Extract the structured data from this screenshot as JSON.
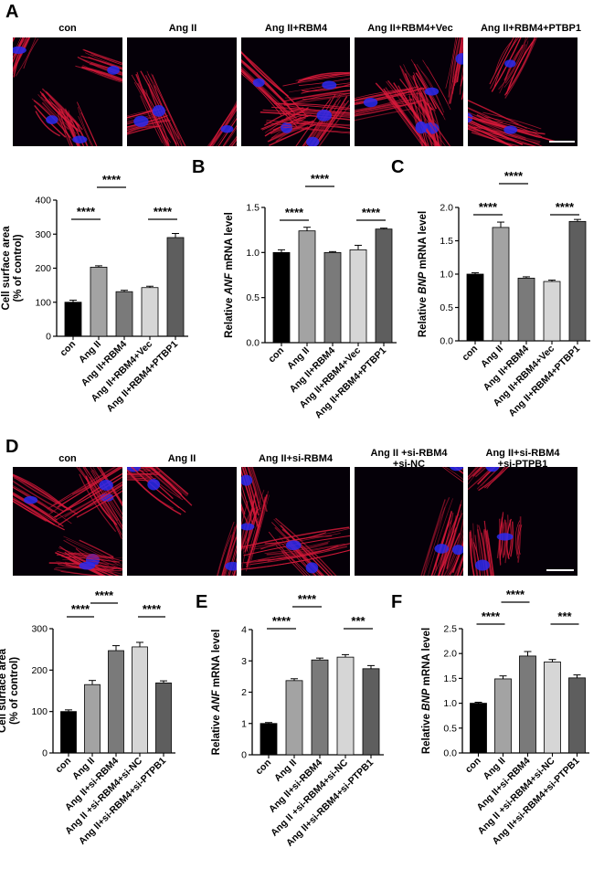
{
  "panels": {
    "A": "A",
    "B": "B",
    "C": "C",
    "D": "D",
    "E": "E",
    "F": "F"
  },
  "micrographs_top": {
    "titles": [
      "con",
      "Ang II",
      "Ang II+RBM4",
      "Ang II+RBM4+Vec",
      "Ang II+RBM4+PTBP1"
    ]
  },
  "micrographs_bottom": {
    "titles": [
      [
        "con"
      ],
      [
        "Ang II"
      ],
      [
        "Ang II+si-RBM4"
      ],
      [
        "Ang II +si-RBM4",
        "+si-NC"
      ],
      [
        "Ang II+si-RBM4",
        "+si-PTPB1"
      ]
    ]
  },
  "colors": {
    "bars": [
      "#000000",
      "#a3a3a3",
      "#7a7a7a",
      "#d6d6d6",
      "#5e5e5e"
    ],
    "stain_red": "#d7193a",
    "nuclei_blue": "#2a2af0"
  },
  "chart_data": [
    {
      "id": "chart-a",
      "type": "bar",
      "ylabel_lines": [
        "Cell surface area",
        "(% of control)"
      ],
      "ylim": [
        0,
        400
      ],
      "yticks": [
        "0",
        "100",
        "200",
        "300",
        "400"
      ],
      "categories": [
        "con",
        "Ang II",
        "Ang II+RBM4",
        "Ang II+RBM4+Vec",
        "Ang II+RBM4+PTBP1"
      ],
      "values": [
        100,
        203,
        131,
        143,
        290
      ],
      "errors": [
        6,
        4,
        4,
        4,
        12
      ],
      "significance": [
        {
          "from": 0,
          "to": 1,
          "label": "****"
        },
        {
          "from": 1,
          "to": 2,
          "label": "****"
        },
        {
          "from": 3,
          "to": 4,
          "label": "****"
        }
      ]
    },
    {
      "id": "chart-b",
      "type": "bar",
      "ylabel_parts": [
        "Relative ",
        "ANF",
        " mRNA level"
      ],
      "ylim": [
        0,
        1.5
      ],
      "yticks": [
        "0.0",
        "0.5",
        "1.0",
        "1.5"
      ],
      "categories": [
        "con",
        "Ang II",
        "Ang II+RBM4",
        "Ang II+RBM4+Vec",
        "Ang II+RBM4+PTBP1"
      ],
      "values": [
        1.0,
        1.24,
        1.0,
        1.03,
        1.26
      ],
      "errors": [
        0.03,
        0.04,
        0.01,
        0.05,
        0.01
      ],
      "significance": [
        {
          "from": 0,
          "to": 1,
          "label": "****"
        },
        {
          "from": 1,
          "to": 2,
          "label": "****"
        },
        {
          "from": 3,
          "to": 4,
          "label": "****"
        }
      ]
    },
    {
      "id": "chart-c",
      "type": "bar",
      "ylabel_parts": [
        "Relative ",
        "BNP",
        " mRNA level"
      ],
      "ylim": [
        0,
        2.0
      ],
      "yticks": [
        "0.0",
        "0.5",
        "1.0",
        "1.5",
        "2.0"
      ],
      "categories": [
        "con",
        "Ang II",
        "Ang II+RBM4",
        "Ang II+RBM4+Vec",
        "Ang II+RBM4+PTBP1"
      ],
      "values": [
        1.0,
        1.7,
        0.94,
        0.89,
        1.79
      ],
      "errors": [
        0.02,
        0.08,
        0.02,
        0.02,
        0.03
      ],
      "significance": [
        {
          "from": 0,
          "to": 1,
          "label": "****"
        },
        {
          "from": 1,
          "to": 2,
          "label": "****"
        },
        {
          "from": 3,
          "to": 4,
          "label": "****"
        }
      ]
    },
    {
      "id": "chart-d",
      "type": "bar",
      "ylabel_lines": [
        "Cell surface area",
        "(% of control)"
      ],
      "ylim": [
        0,
        300
      ],
      "yticks": [
        "0",
        "100",
        "200",
        "300"
      ],
      "categories": [
        "con",
        "Ang II",
        "Ang II+si-RBM4",
        "Ang II +si-RBM4+si-NC",
        "Ang II+si-RBM4+si-PTPB1"
      ],
      "values": [
        100,
        165,
        247,
        256,
        169
      ],
      "errors": [
        4,
        10,
        12,
        11,
        5
      ],
      "significance": [
        {
          "from": 0,
          "to": 1,
          "label": "****"
        },
        {
          "from": 1,
          "to": 2,
          "label": "****"
        },
        {
          "from": 3,
          "to": 4,
          "label": "****"
        }
      ]
    },
    {
      "id": "chart-e",
      "type": "bar",
      "ylabel_parts": [
        "Relative ",
        "ANF",
        " mRNA level"
      ],
      "ylim": [
        0,
        4
      ],
      "yticks": [
        "0",
        "1",
        "2",
        "3",
        "4"
      ],
      "categories": [
        "con",
        "Ang II",
        "Ang II+si-RBM4",
        "Ang II +si-RBM4+si-NC",
        "Ang II+si-RBM4+si-PTPB1"
      ],
      "values": [
        1.0,
        2.37,
        3.03,
        3.12,
        2.75
      ],
      "errors": [
        0.03,
        0.06,
        0.06,
        0.08,
        0.1
      ],
      "significance": [
        {
          "from": 0,
          "to": 1,
          "label": "****"
        },
        {
          "from": 1,
          "to": 2,
          "label": "****"
        },
        {
          "from": 3,
          "to": 4,
          "label": "***"
        }
      ]
    },
    {
      "id": "chart-f",
      "type": "bar",
      "ylabel_parts": [
        "Relative ",
        "BNP",
        " mRNA level"
      ],
      "ylim": [
        0,
        2.5
      ],
      "yticks": [
        "0.0",
        "0.5",
        "1.0",
        "1.5",
        "2.0",
        "2.5"
      ],
      "categories": [
        "con",
        "Ang II",
        "Ang II+si-RBM4",
        "Ang II +si-RBM4+si-NC",
        "Ang II+si-RBM4+si-PTPB1"
      ],
      "values": [
        1.0,
        1.49,
        1.95,
        1.83,
        1.51
      ],
      "errors": [
        0.02,
        0.06,
        0.09,
        0.05,
        0.06
      ],
      "significance": [
        {
          "from": 0,
          "to": 1,
          "label": "****"
        },
        {
          "from": 1,
          "to": 2,
          "label": "****"
        },
        {
          "from": 3,
          "to": 4,
          "label": "***"
        }
      ]
    }
  ]
}
